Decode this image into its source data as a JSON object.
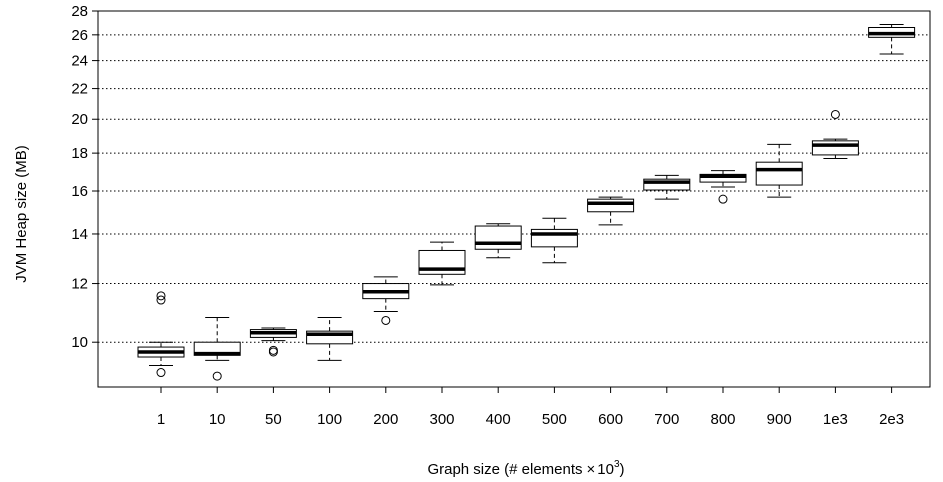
{
  "chart_data": {
    "type": "boxplot",
    "title": "",
    "xlabel": "Graph size (# elements",
    "xlabel_times": "×",
    "xlabel_base": "10",
    "xlabel_exp": "3",
    "xlabel_close": ")",
    "ylabel": "JVM Heap size (MB)",
    "y_scale": "log",
    "ylim": [
      8.7,
      28
    ],
    "y_ticks": [
      10,
      12,
      14,
      16,
      18,
      20,
      22,
      24,
      26,
      28
    ],
    "grid": "horizontal dotted",
    "categories": [
      "1",
      "10",
      "50",
      "100",
      "200",
      "300",
      "400",
      "500",
      "600",
      "700",
      "800",
      "900",
      "1e3",
      "2e3"
    ],
    "boxes": [
      {
        "whisker_low": 9.3,
        "q1": 9.55,
        "median": 9.7,
        "q3": 9.85,
        "whisker_high": 10.0,
        "outliers": [
          9.1,
          11.4,
          11.55
        ]
      },
      {
        "whisker_low": 9.45,
        "q1": 9.6,
        "median": 9.65,
        "q3": 10.0,
        "whisker_high": 10.8,
        "outliers": [
          9.0
        ]
      },
      {
        "whisker_low": 10.05,
        "q1": 10.15,
        "median": 10.3,
        "q3": 10.4,
        "whisker_high": 10.45,
        "outliers": [
          9.7,
          9.75
        ]
      },
      {
        "whisker_low": 9.45,
        "q1": 9.95,
        "median": 10.25,
        "q3": 10.35,
        "whisker_high": 10.8,
        "outliers": []
      },
      {
        "whisker_low": 11.0,
        "q1": 11.45,
        "median": 11.7,
        "q3": 12.0,
        "whisker_high": 12.25,
        "outliers": [
          10.7
        ]
      },
      {
        "whisker_low": 11.95,
        "q1": 12.35,
        "median": 12.55,
        "q3": 13.3,
        "whisker_high": 13.65,
        "outliers": []
      },
      {
        "whisker_low": 13.0,
        "q1": 13.35,
        "median": 13.6,
        "q3": 14.35,
        "whisker_high": 14.45,
        "outliers": []
      },
      {
        "whisker_low": 12.8,
        "q1": 13.45,
        "median": 14.0,
        "q3": 14.2,
        "whisker_high": 14.7,
        "outliers": []
      },
      {
        "whisker_low": 14.4,
        "q1": 15.0,
        "median": 15.4,
        "q3": 15.6,
        "whisker_high": 15.7,
        "outliers": []
      },
      {
        "whisker_low": 15.6,
        "q1": 16.05,
        "median": 16.45,
        "q3": 16.6,
        "whisker_high": 16.8,
        "outliers": []
      },
      {
        "whisker_low": 16.2,
        "q1": 16.45,
        "median": 16.75,
        "q3": 16.85,
        "whisker_high": 17.05,
        "outliers": [
          15.6
        ]
      },
      {
        "whisker_low": 15.7,
        "q1": 16.3,
        "median": 17.1,
        "q3": 17.5,
        "whisker_high": 18.5,
        "outliers": []
      },
      {
        "whisker_low": 17.7,
        "q1": 17.9,
        "median": 18.45,
        "q3": 18.7,
        "whisker_high": 18.8,
        "outliers": [
          20.3
        ]
      },
      {
        "whisker_low": 24.5,
        "q1": 25.8,
        "median": 26.1,
        "q3": 26.6,
        "whisker_high": 26.85,
        "outliers": []
      }
    ]
  }
}
